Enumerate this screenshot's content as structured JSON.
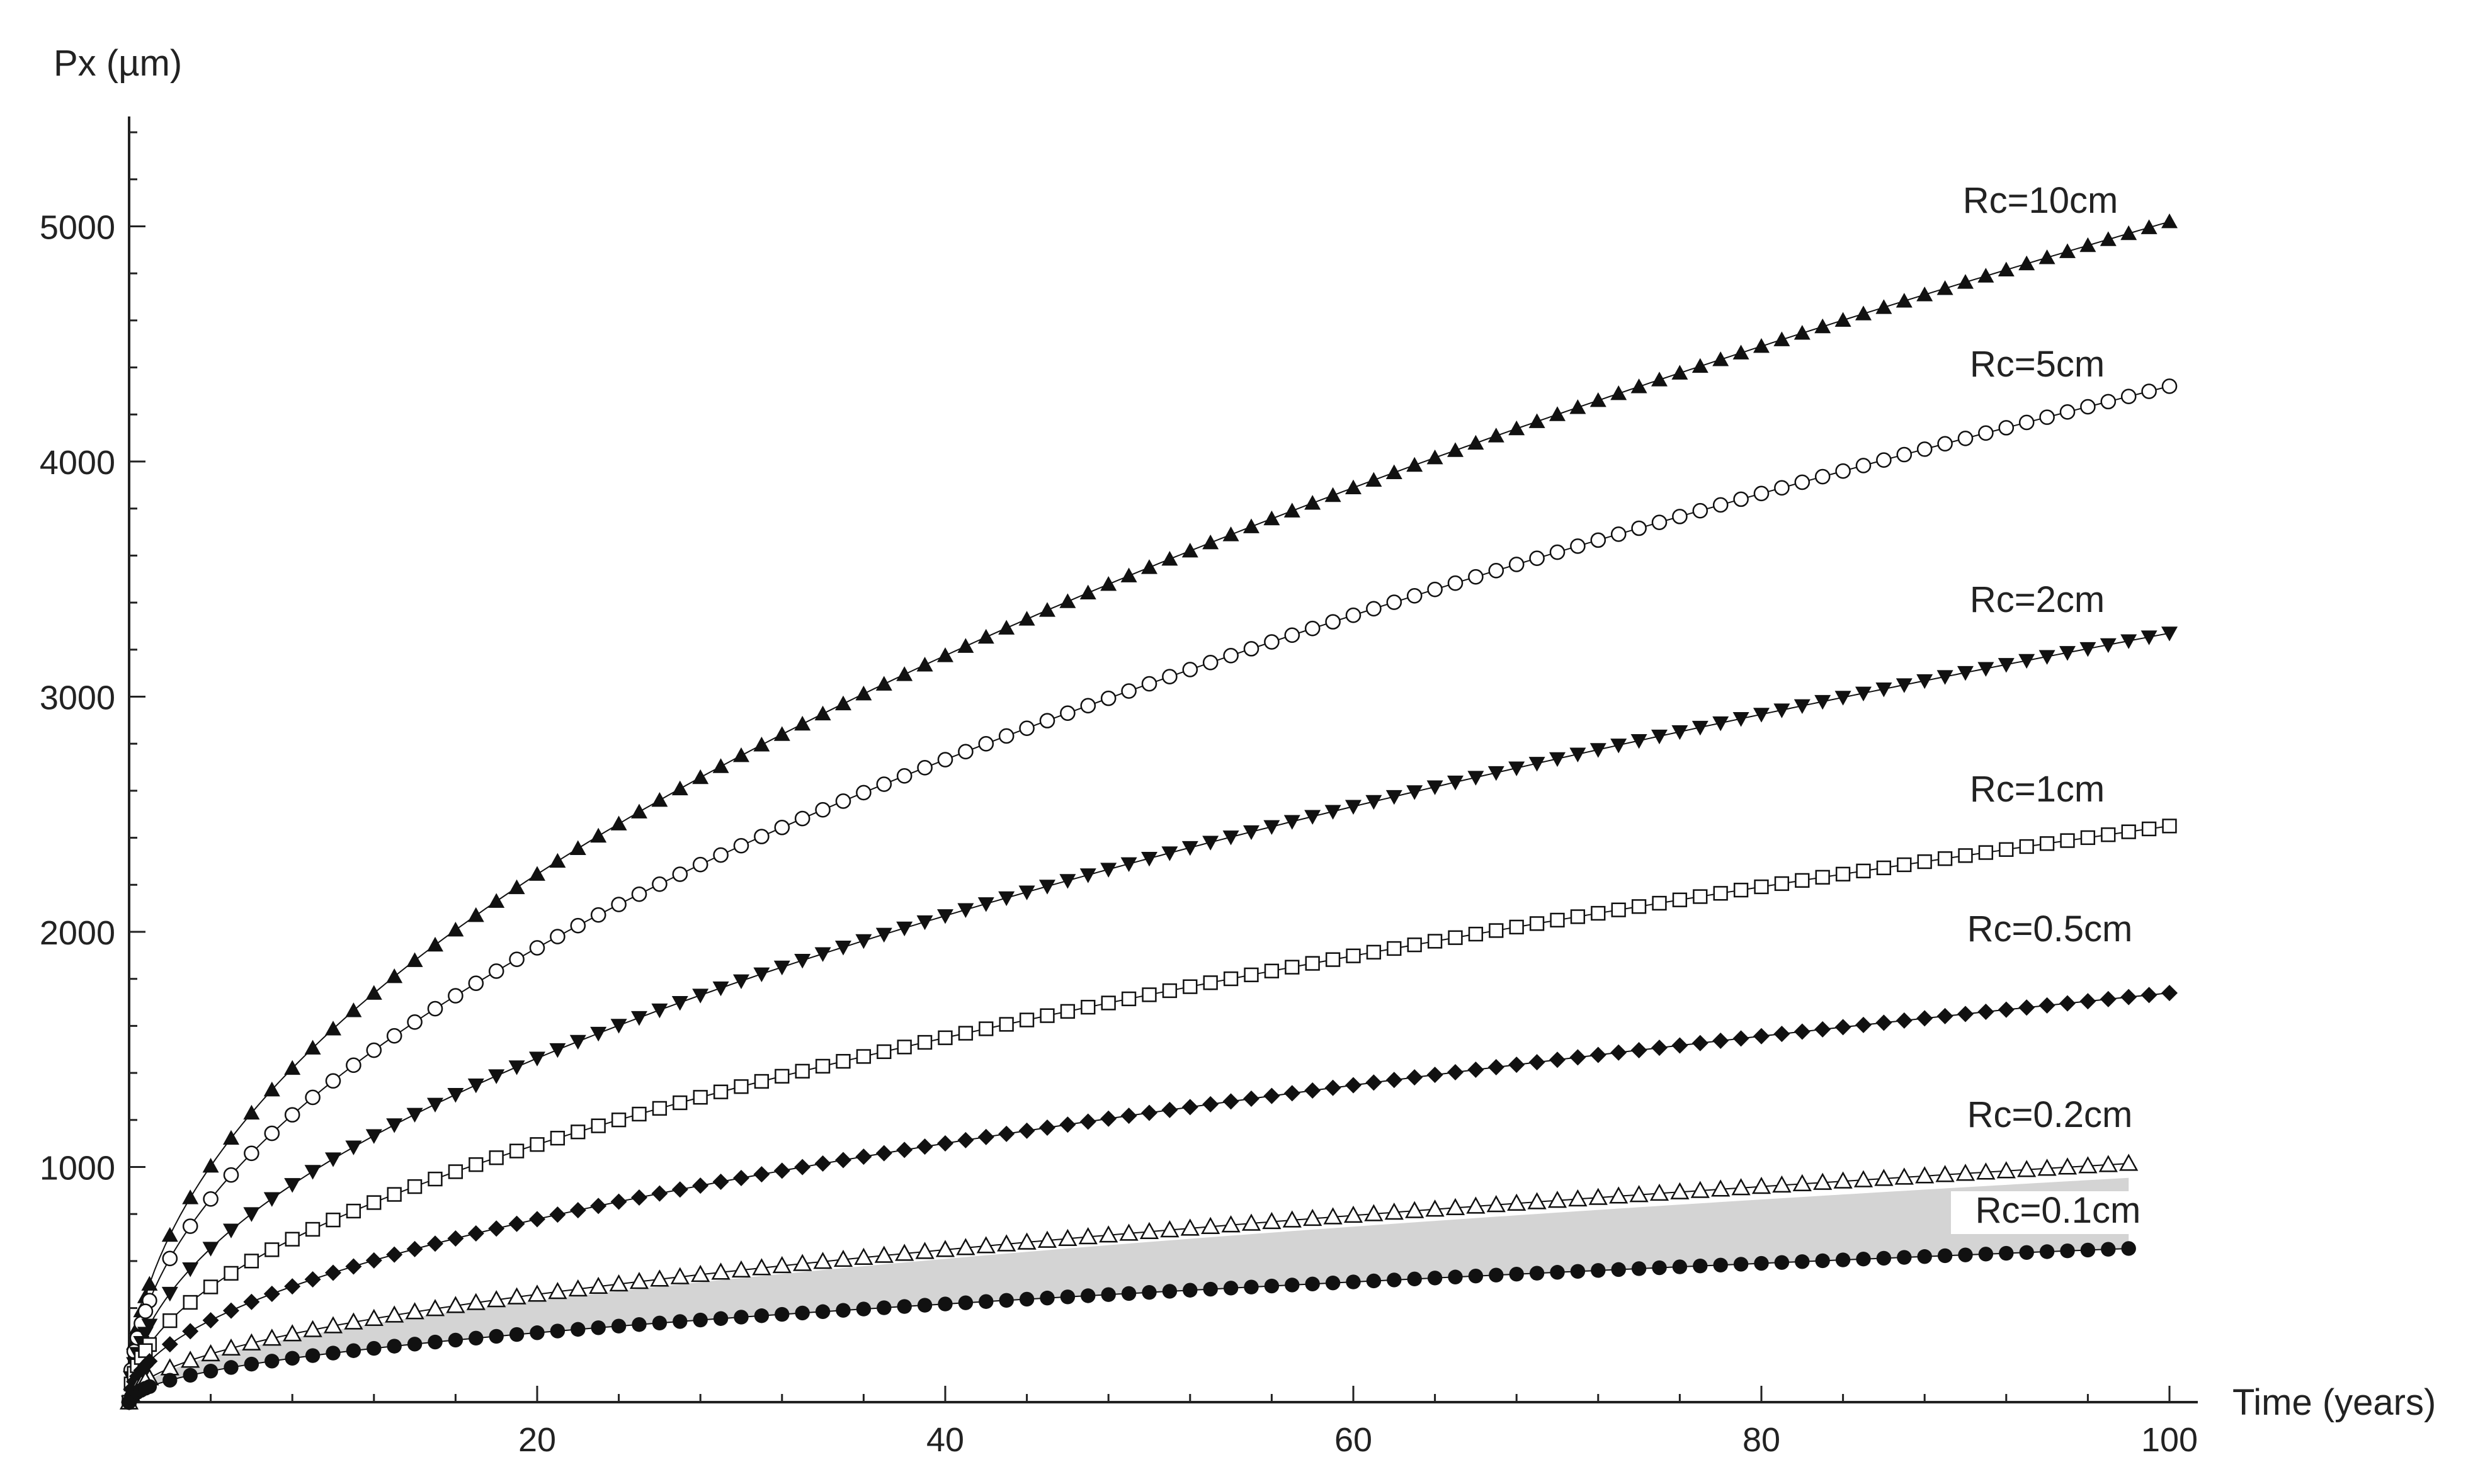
{
  "chart_data": {
    "type": "scatter",
    "title": "",
    "xlabel": "Time (years)",
    "ylabel": "Px (µm)",
    "xlim": [
      0,
      100
    ],
    "ylim": [
      0,
      5400
    ],
    "xticks": [
      20,
      40,
      60,
      80,
      100
    ],
    "yticks": [
      1000,
      2000,
      3000,
      4000,
      5000
    ],
    "grid": false,
    "shaded_band": {
      "between": [
        "Rc=0.1cm",
        "Rc=0.2cm"
      ],
      "color": "#d4d4d4",
      "x_range": [
        0,
        98
      ]
    },
    "series": [
      {
        "name": "Rc=10cm",
        "marker": "triangle-up-filled",
        "amplitude": 5020,
        "exponent": 0.5,
        "x_end": 100
      },
      {
        "name": "Rc=5cm",
        "marker": "circle-open",
        "amplitude": 4320,
        "exponent": 0.5,
        "x_end": 100
      },
      {
        "name": "Rc=2cm",
        "marker": "triangle-down-filled",
        "amplitude": 3270,
        "exponent": 0.5,
        "x_end": 100
      },
      {
        "name": "Rc=1cm",
        "marker": "square-open",
        "amplitude": 2450,
        "exponent": 0.5,
        "x_end": 100
      },
      {
        "name": "Rc=0.5cm",
        "marker": "diamond-filled",
        "amplitude": 1740,
        "exponent": 0.5,
        "x_end": 100
      },
      {
        "name": "Rc=0.2cm",
        "marker": "triangle-up-open",
        "amplitude": 1025,
        "exponent": 0.5,
        "x_end": 98
      },
      {
        "name": "Rc=0.1cm",
        "marker": "circle-filled",
        "amplitude": 660,
        "exponent": 0.5,
        "x_end": 98
      }
    ]
  }
}
